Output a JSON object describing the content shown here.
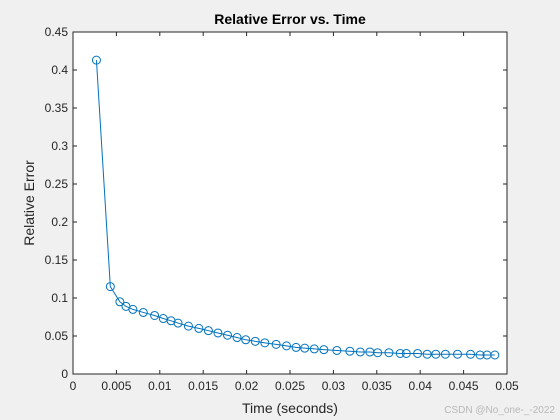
{
  "chart_data": {
    "type": "line",
    "title": "Relative Error vs. Time",
    "xlabel": "Time (seconds)",
    "ylabel": "Relative Error",
    "xlim": [
      0,
      0.05
    ],
    "ylim": [
      0,
      0.45
    ],
    "xticks": [
      0,
      0.005,
      0.01,
      0.015,
      0.02,
      0.025,
      0.03,
      0.035,
      0.04,
      0.045,
      0.05
    ],
    "xtick_labels": [
      "0",
      "0.005",
      "0.01",
      "0.015",
      "0.02",
      "0.025",
      "0.03",
      "0.035",
      "0.04",
      "0.045",
      "0.05"
    ],
    "yticks": [
      0,
      0.05,
      0.1,
      0.15,
      0.2,
      0.25,
      0.3,
      0.35,
      0.4,
      0.45
    ],
    "ytick_labels": [
      "0",
      "0.05",
      "0.1",
      "0.15",
      "0.2",
      "0.25",
      "0.3",
      "0.35",
      "0.4",
      "0.45"
    ],
    "grid": false,
    "marker": "circle-open",
    "color": "#0072bd",
    "series": [
      {
        "x": [
          0.0027,
          0.0043,
          0.0054,
          0.0061,
          0.0069,
          0.0081,
          0.0094,
          0.0104,
          0.0113,
          0.0121,
          0.0133,
          0.0145,
          0.0156,
          0.0167,
          0.0178,
          0.0189,
          0.0199,
          0.021,
          0.0221,
          0.0234,
          0.0246,
          0.0257,
          0.0267,
          0.0278,
          0.0289,
          0.0304,
          0.0319,
          0.0331,
          0.0342,
          0.0351,
          0.0364,
          0.0377,
          0.0384,
          0.0397,
          0.0408,
          0.0418,
          0.0429,
          0.0443,
          0.0458,
          0.0469,
          0.0477,
          0.0486
        ],
        "y": [
          0.413,
          0.115,
          0.095,
          0.089,
          0.085,
          0.081,
          0.077,
          0.073,
          0.07,
          0.067,
          0.063,
          0.06,
          0.057,
          0.054,
          0.051,
          0.048,
          0.045,
          0.043,
          0.041,
          0.039,
          0.037,
          0.035,
          0.034,
          0.033,
          0.032,
          0.031,
          0.03,
          0.029,
          0.029,
          0.028,
          0.028,
          0.027,
          0.027,
          0.027,
          0.026,
          0.026,
          0.026,
          0.026,
          0.026,
          0.025,
          0.025,
          0.025
        ]
      }
    ]
  },
  "watermark": "CSDN @No_one-_-2022"
}
